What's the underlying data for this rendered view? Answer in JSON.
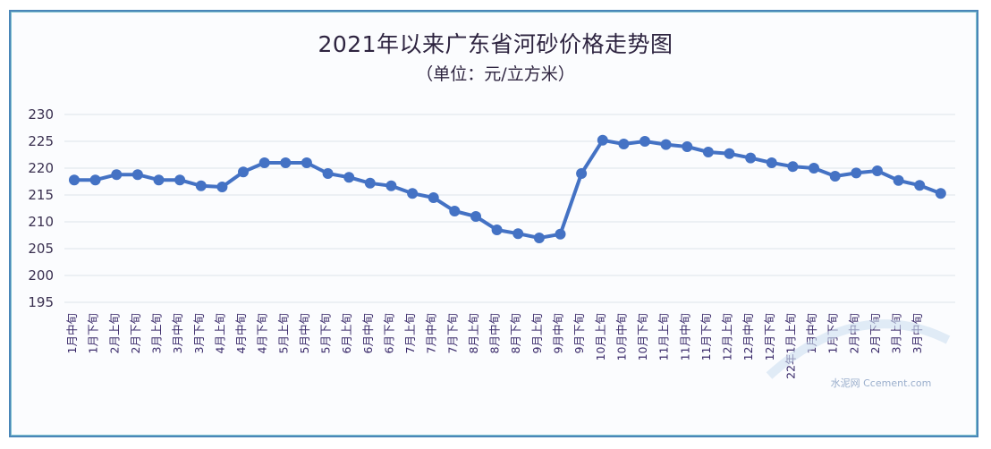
{
  "chart": {
    "title": "2021年以来广东省河砂价格走势图",
    "subtitle": "（单位：元/立方米）",
    "watermark": "水泥网 Ccement.com",
    "colors": {
      "line": "#4472c4",
      "grid": "#dde3ea",
      "frame": "#4a86b8"
    }
  },
  "chart_data": {
    "type": "line",
    "title": "2021年以来广东省河砂价格走势图",
    "subtitle": "（单位：元/立方米）",
    "xlabel": "",
    "ylabel": "元/立方米",
    "ylim": [
      195,
      230
    ],
    "yticks": [
      195,
      200,
      205,
      210,
      215,
      220,
      225,
      230
    ],
    "grid": true,
    "legend": "none",
    "categories": [
      "1月中旬",
      "1月下旬",
      "2月上旬",
      "2月下旬",
      "3月上旬",
      "3月中旬",
      "3月下旬",
      "4月上旬",
      "4月中旬",
      "4月下旬",
      "5月上旬",
      "5月中旬",
      "5月下旬",
      "6月上旬",
      "6月中旬",
      "6月下旬",
      "7月上旬",
      "7月中旬",
      "7月下旬",
      "8月上旬",
      "8月中旬",
      "8月下旬",
      "9月上旬",
      "9月中旬",
      "9月下旬",
      "10月上旬",
      "10月中旬",
      "10月下旬",
      "11月上旬",
      "11月中旬",
      "11月下旬",
      "12月上旬",
      "12月中旬",
      "12月下旬",
      "22年1月上旬",
      "1月中旬",
      "1月下旬",
      "2月中旬",
      "2月下旬",
      "3月上旬",
      "3月中旬",
      ""
    ],
    "series": [
      {
        "name": "广东省河砂价格",
        "values": [
          217.8,
          217.8,
          218.8,
          218.8,
          217.8,
          217.8,
          216.7,
          216.5,
          219.3,
          221.0,
          221.0,
          221.0,
          219.0,
          218.3,
          217.2,
          216.7,
          215.3,
          214.5,
          212.0,
          211.0,
          208.5,
          207.8,
          207.0,
          207.7,
          219.0,
          225.2,
          224.5,
          225.0,
          224.4,
          224.0,
          223.0,
          222.7,
          221.9,
          221.0,
          220.3,
          220.0,
          218.5,
          219.1,
          219.5,
          217.7,
          216.8,
          215.3
        ]
      }
    ]
  }
}
